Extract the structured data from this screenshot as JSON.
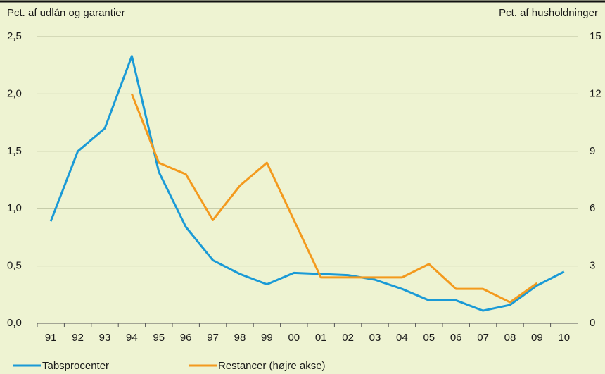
{
  "chart_data": {
    "type": "line",
    "y_label": "Pct. af udlån og garantier",
    "y2_label": "Pct. af husholdninger",
    "categories": [
      "91",
      "92",
      "93",
      "94",
      "95",
      "96",
      "97",
      "98",
      "99",
      "00",
      "01",
      "02",
      "03",
      "04",
      "05",
      "06",
      "07",
      "08",
      "09",
      "10"
    ],
    "series": [
      {
        "name": "Tabsprocenter",
        "color": "#1a9ad6",
        "values": [
          0.89,
          1.5,
          1.7,
          2.33,
          1.32,
          0.84,
          0.55,
          0.43,
          0.34,
          0.44,
          0.43,
          0.42,
          0.38,
          0.3,
          0.2,
          0.2,
          0.11,
          0.16,
          0.33,
          0.45
        ]
      },
      {
        "name": "Restancer (højre akse)",
        "color": "#f39a1e",
        "axis": "y2",
        "values": [
          null,
          null,
          null,
          12,
          8.4,
          7.8,
          5.4,
          7.2,
          8.4,
          5.4,
          2.4,
          2.4,
          2.4,
          2.4,
          3.1,
          1.8,
          1.8,
          1.1,
          2.1,
          null
        ]
      }
    ],
    "ylim": [
      0,
      2.5
    ],
    "yticks": [
      {
        "value": 0,
        "label": "0,0"
      },
      {
        "value": 0.5,
        "label": "0,5"
      },
      {
        "value": 1,
        "label": "1,0"
      },
      {
        "value": 1.5,
        "label": "1,5"
      },
      {
        "value": 2,
        "label": "2,0"
      },
      {
        "value": 2.5,
        "label": "2,5"
      }
    ],
    "y2lim": [
      0,
      15
    ],
    "y2ticks": [
      0,
      3,
      6,
      9,
      12,
      15
    ],
    "grid": true
  }
}
